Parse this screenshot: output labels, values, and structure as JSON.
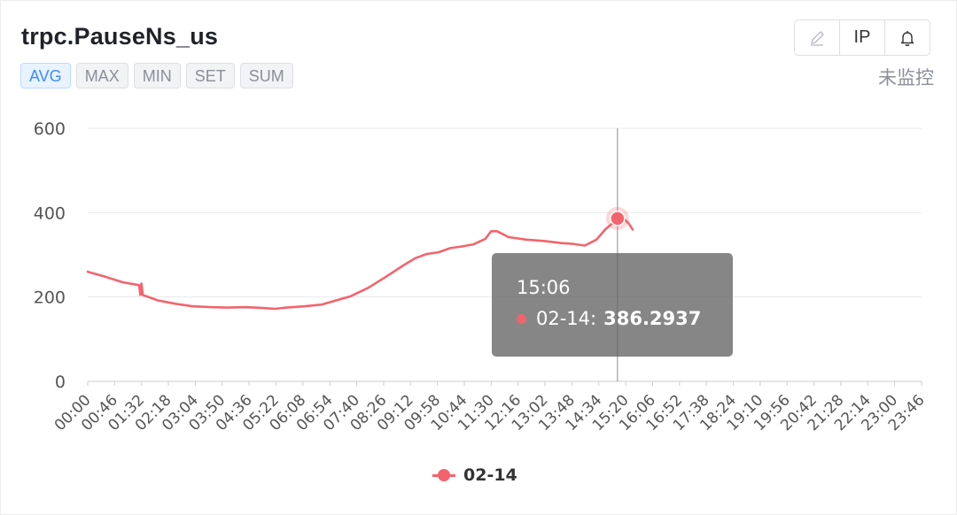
{
  "header": {
    "title": "trpc.PauseNs_us",
    "tabs": [
      {
        "label": "AVG",
        "active": true
      },
      {
        "label": "MAX",
        "active": false
      },
      {
        "label": "MIN",
        "active": false
      },
      {
        "label": "SET",
        "active": false
      },
      {
        "label": "SUM",
        "active": false
      }
    ],
    "toolbar": {
      "edit_icon": "pencil-icon",
      "ip_label": "IP",
      "bell_icon": "bell-icon"
    },
    "monitor_status": "未监控"
  },
  "tooltip": {
    "time": "15:06",
    "series": "02-14",
    "value": "386.2937"
  },
  "colors": {
    "series": "#f2646c",
    "active_tab": "#3b8cff"
  },
  "chart_data": {
    "type": "line",
    "title": "",
    "xlabel": "",
    "ylabel": "",
    "ylim": [
      0,
      600
    ],
    "yticks": [
      0,
      200,
      400,
      600
    ],
    "x_ticks": [
      "00:00",
      "00:46",
      "01:32",
      "02:18",
      "03:04",
      "03:50",
      "04:36",
      "05:22",
      "06:08",
      "06:54",
      "07:40",
      "08:26",
      "09:12",
      "09:58",
      "10:44",
      "11:30",
      "12:16",
      "13:02",
      "13:48",
      "14:34",
      "15:20",
      "16:06",
      "16:52",
      "17:38",
      "18:24",
      "19:10",
      "19:56",
      "20:42",
      "21:28",
      "22:14",
      "23:00",
      "23:46"
    ],
    "grid": true,
    "legend_position": "bottom",
    "series": [
      {
        "name": "02-14",
        "x": [
          "00:00",
          "00:30",
          "01:00",
          "01:28",
          "01:30",
          "01:32",
          "01:34",
          "02:00",
          "02:30",
          "03:00",
          "03:30",
          "04:00",
          "04:30",
          "05:00",
          "05:20",
          "05:40",
          "06:10",
          "06:40",
          "07:00",
          "07:30",
          "08:00",
          "08:30",
          "09:00",
          "09:20",
          "09:40",
          "10:00",
          "10:20",
          "10:40",
          "11:00",
          "11:20",
          "11:30",
          "11:40",
          "12:00",
          "12:30",
          "13:00",
          "13:30",
          "13:50",
          "14:10",
          "14:30",
          "14:45",
          "15:00",
          "15:06",
          "15:15",
          "15:25",
          "15:32"
        ],
        "values": [
          260,
          248,
          235,
          228,
          205,
          232,
          205,
          192,
          184,
          178,
          176,
          175,
          176,
          174,
          172,
          175,
          178,
          182,
          190,
          202,
          222,
          248,
          275,
          292,
          302,
          306,
          316,
          320,
          325,
          338,
          356,
          356,
          342,
          336,
          333,
          328,
          326,
          322,
          336,
          360,
          378,
          386,
          388,
          375,
          360
        ]
      }
    ],
    "highlight": {
      "x": "15:06",
      "value": 386.2937
    }
  }
}
